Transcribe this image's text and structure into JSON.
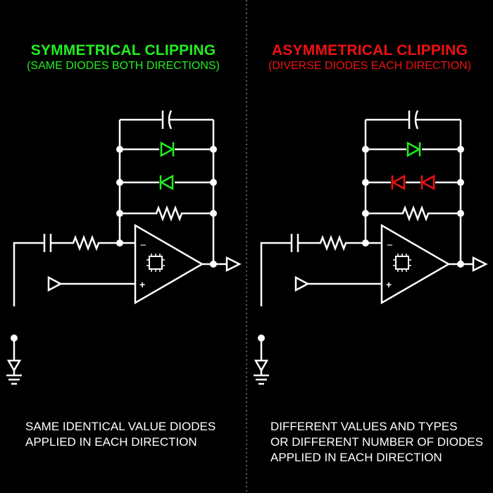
{
  "colors": {
    "background": "#000000",
    "wire": "#ffffff",
    "symmetrical_accent": "#22ee22",
    "asymmetrical_accent": "#ee1111",
    "divider": "#777777"
  },
  "left": {
    "title": "SYMMETRICAL CLIPPING",
    "subtitle": "(SAME DIODES BOTH DIRECTIONS)",
    "description": [
      "SAME IDENTICAL VALUE DIODES",
      "APPLIED IN EACH DIRECTION"
    ]
  },
  "right": {
    "title": "ASYMMETRICAL CLIPPING",
    "subtitle": "(DIVERSE DIODES EACH DIRECTION)",
    "description": [
      "DIFFERENT VALUES AND TYPES",
      "OR DIFFERENT NUMBER OF DIODES",
      "APPLIED IN EACH DIRECTION"
    ]
  },
  "opamp": {
    "minus_label": "−",
    "plus_label": "+"
  }
}
